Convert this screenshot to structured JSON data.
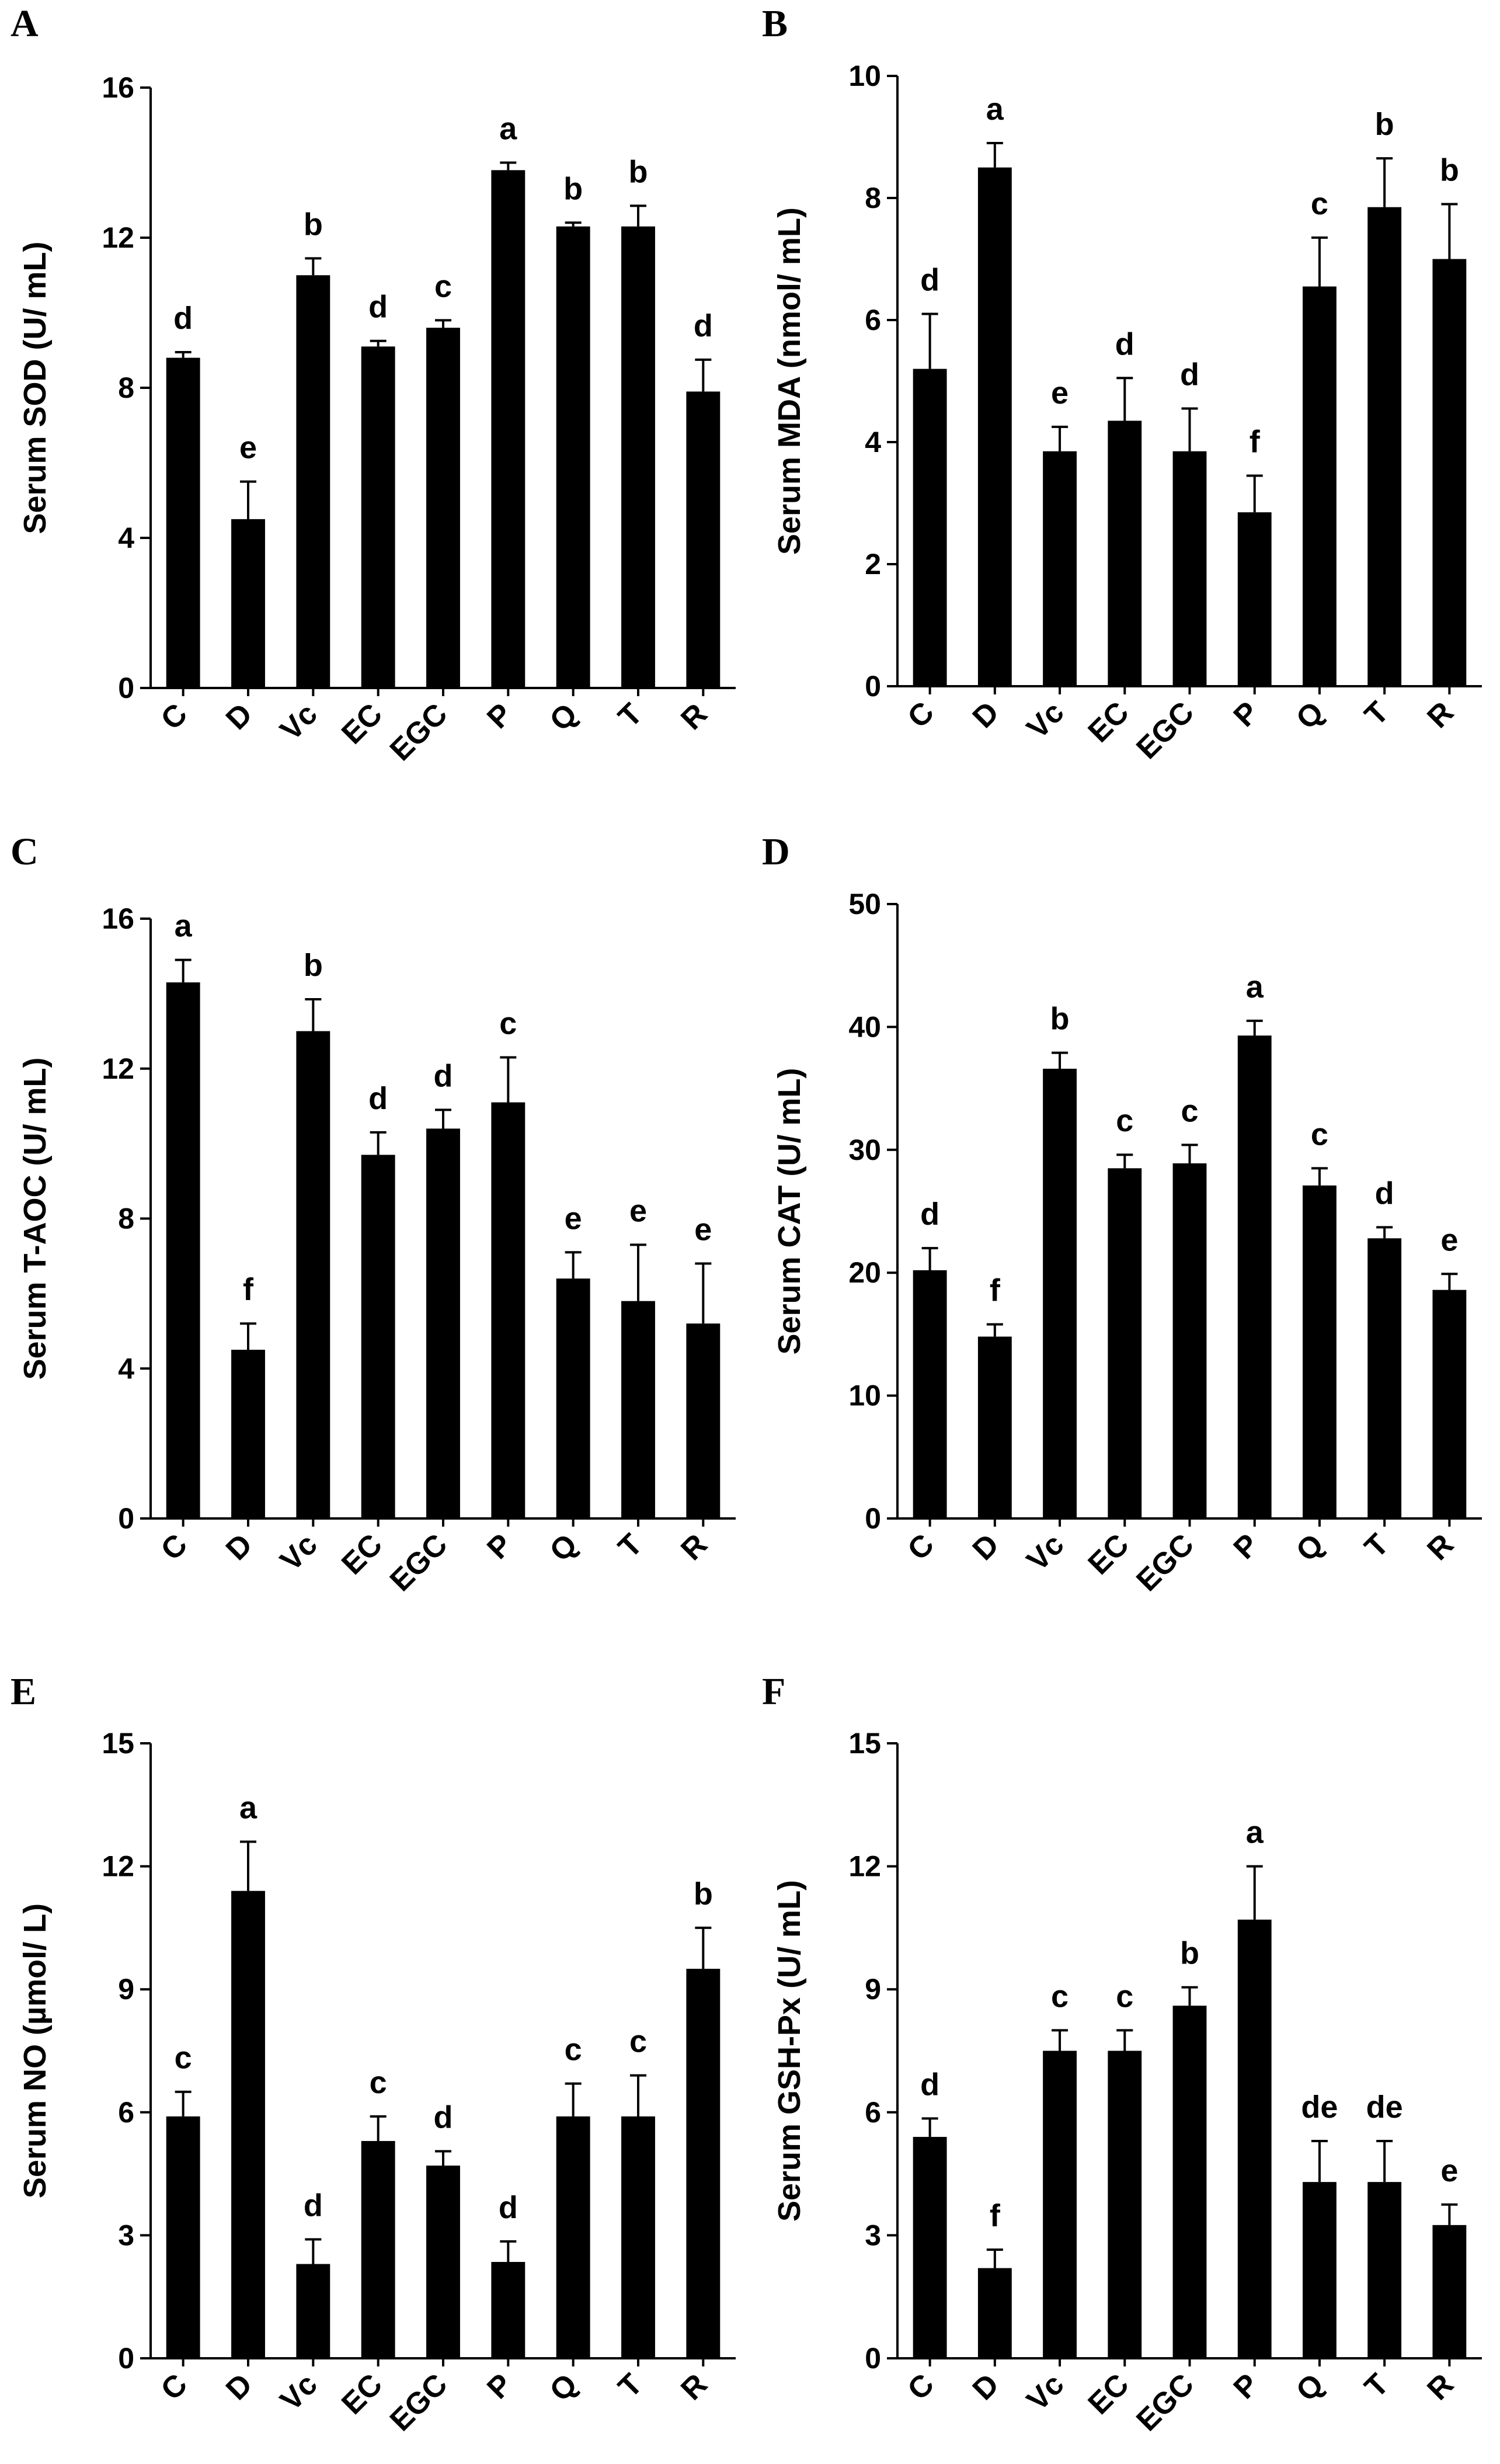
{
  "chart_data": [
    {
      "type": "bar",
      "panel": "A",
      "ylabel": "Serum SOD (U/ mL)",
      "ylim": [
        0,
        16
      ],
      "yticks": [
        0,
        4,
        8,
        12,
        16
      ],
      "categories": [
        "C",
        "D",
        "Vc",
        "EC",
        "EGC",
        "P",
        "Q",
        "T",
        "R"
      ],
      "values": [
        8.8,
        4.5,
        11.0,
        9.1,
        9.6,
        13.8,
        12.3,
        12.3,
        7.9
      ],
      "errors": [
        0.15,
        1.0,
        0.45,
        0.15,
        0.2,
        0.2,
        0.1,
        0.55,
        0.85
      ],
      "significance": [
        "d",
        "e",
        "b",
        "d",
        "c",
        "a",
        "b",
        "b",
        "d"
      ]
    },
    {
      "type": "bar",
      "panel": "B",
      "ylabel": "Serum MDA (nmol/ mL)",
      "ylim": [
        0,
        10
      ],
      "yticks": [
        0,
        2,
        4,
        6,
        8,
        10
      ],
      "categories": [
        "C",
        "D",
        "Vc",
        "EC",
        "EGC",
        "P",
        "Q",
        "T",
        "R"
      ],
      "values": [
        5.2,
        8.5,
        3.85,
        4.35,
        3.85,
        2.85,
        6.55,
        7.85,
        7.0
      ],
      "errors": [
        0.9,
        0.4,
        0.4,
        0.7,
        0.7,
        0.6,
        0.8,
        0.8,
        0.9
      ],
      "significance": [
        "d",
        "a",
        "e",
        "d",
        "d",
        "f",
        "c",
        "b",
        "b"
      ]
    },
    {
      "type": "bar",
      "panel": "C",
      "ylabel": "Serum T-AOC (U/ mL)",
      "ylim": [
        0,
        16
      ],
      "yticks": [
        0,
        4,
        8,
        12,
        16
      ],
      "categories": [
        "C",
        "D",
        "Vc",
        "EC",
        "EGC",
        "P",
        "Q",
        "T",
        "R"
      ],
      "values": [
        14.3,
        4.5,
        13.0,
        9.7,
        10.4,
        11.1,
        6.4,
        5.8,
        5.2
      ],
      "errors": [
        0.6,
        0.7,
        0.85,
        0.6,
        0.5,
        1.2,
        0.7,
        1.5,
        1.6
      ],
      "significance": [
        "a",
        "f",
        "b",
        "d",
        "d",
        "c",
        "e",
        "e",
        "e"
      ]
    },
    {
      "type": "bar",
      "panel": "D",
      "ylabel": "Serum CAT (U/ mL)",
      "ylim": [
        0,
        50
      ],
      "yticks": [
        0,
        10,
        20,
        30,
        40,
        50
      ],
      "categories": [
        "C",
        "D",
        "Vc",
        "EC",
        "EGC",
        "P",
        "Q",
        "T",
        "R"
      ],
      "values": [
        20.2,
        14.8,
        36.6,
        28.5,
        28.9,
        39.3,
        27.1,
        22.8,
        18.6
      ],
      "errors": [
        1.8,
        1.0,
        1.3,
        1.1,
        1.5,
        1.2,
        1.4,
        0.9,
        1.3
      ],
      "significance": [
        "d",
        "f",
        "b",
        "c",
        "c",
        "a",
        "c",
        "d",
        "e"
      ]
    },
    {
      "type": "bar",
      "panel": "E",
      "ylabel": "Serum NO (µmol/ L)",
      "ylim": [
        0,
        15
      ],
      "yticks": [
        0,
        3,
        6,
        9,
        12,
        15
      ],
      "categories": [
        "C",
        "D",
        "Vc",
        "EC",
        "EGC",
        "P",
        "Q",
        "T",
        "R"
      ],
      "values": [
        5.9,
        11.4,
        2.3,
        5.3,
        4.7,
        2.35,
        5.9,
        5.9,
        9.5
      ],
      "errors": [
        0.6,
        1.2,
        0.6,
        0.6,
        0.35,
        0.5,
        0.8,
        1.0,
        1.0
      ],
      "significance": [
        "c",
        "a",
        "d",
        "c",
        "d",
        "d",
        "c",
        "c",
        "b"
      ]
    },
    {
      "type": "bar",
      "panel": "F",
      "ylabel": "Serum GSH-Px (U/ mL)",
      "ylim": [
        0,
        15
      ],
      "yticks": [
        0,
        3,
        6,
        9,
        12,
        15
      ],
      "categories": [
        "C",
        "D",
        "Vc",
        "EC",
        "EGC",
        "P",
        "Q",
        "T",
        "R"
      ],
      "values": [
        5.4,
        2.2,
        7.5,
        7.5,
        8.6,
        10.7,
        4.3,
        4.3,
        3.25
      ],
      "errors": [
        0.45,
        0.45,
        0.5,
        0.5,
        0.45,
        1.3,
        1.0,
        1.0,
        0.5
      ],
      "significance": [
        "d",
        "f",
        "c",
        "c",
        "b",
        "a",
        "de",
        "de",
        "e"
      ]
    }
  ]
}
